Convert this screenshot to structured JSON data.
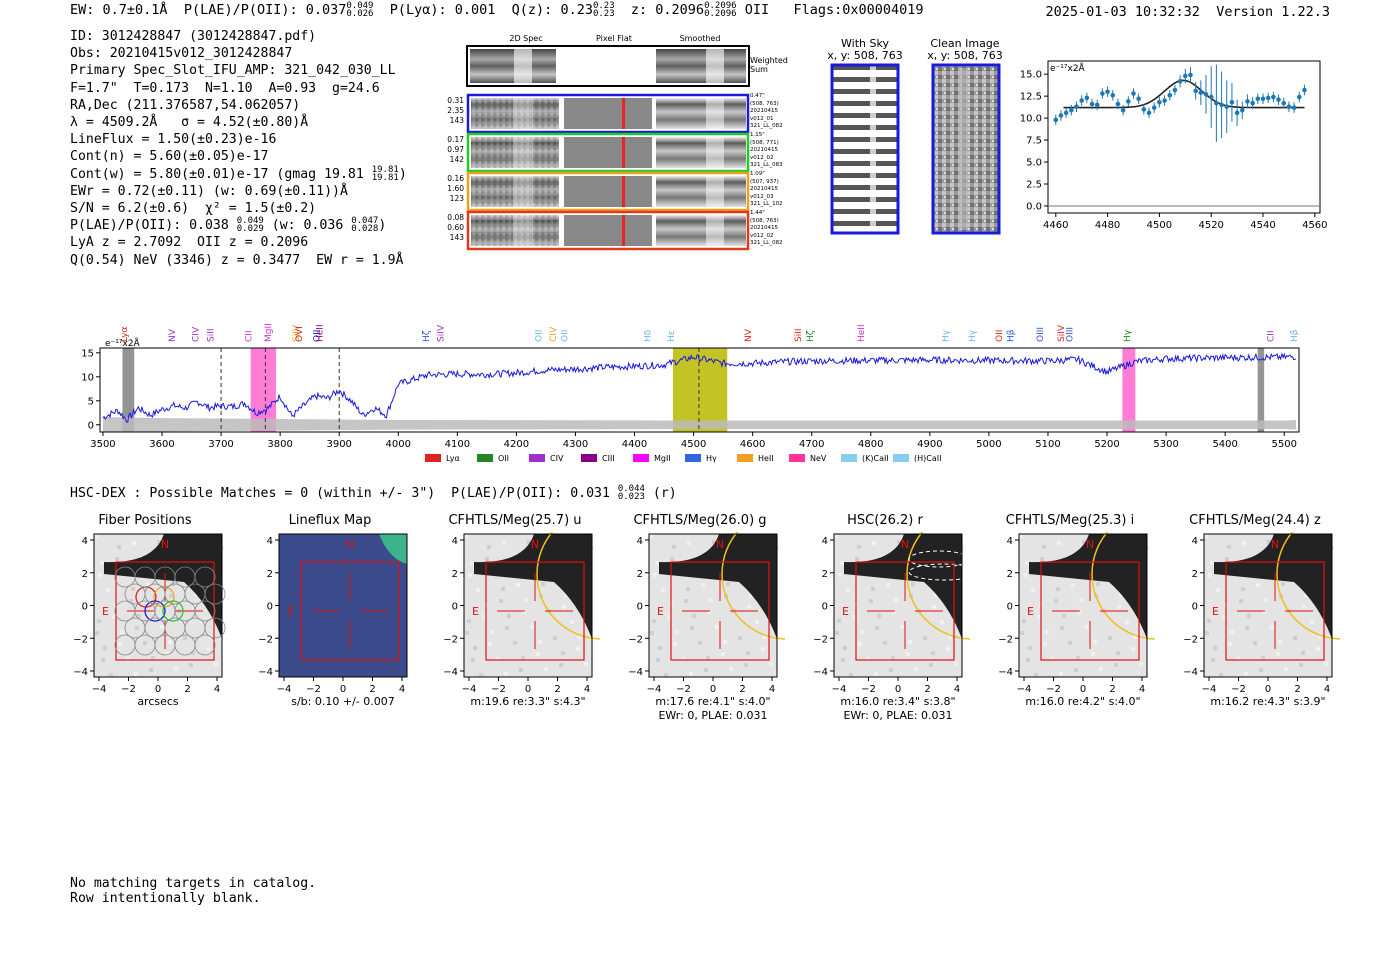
{
  "header": {
    "ew": "EW: 0.7±0.1Å",
    "plae_label": "P(LAE)/P(OII): 0.037",
    "plae_hi": "0.049",
    "plae_lo": "0.026",
    "plya": "P(Lyα): 0.001",
    "qz_label": "Q(z): 0.23",
    "qz_hi": "0.23",
    "qz_lo": "0.23",
    "z_label": "z: 0.2096",
    "z_hi": "0.2096",
    "z_lo": "0.2096",
    "z_line": "OII",
    "flags": "Flags:0x00004019",
    "timestamp": "2025-01-03 10:32:32",
    "version": "Version 1.22.3"
  },
  "info": {
    "id": "ID: 3012428847 (3012428847.pdf)",
    "obs": "Obs: 20210415v012_3012428847",
    "primary": "Primary Spec_Slot_IFU_AMP: 321_042_030_LL",
    "fwhm": "F=1.7\"  T=0.173  N=1.10  A=0.93  g=24.6",
    "radec": "RA,Dec (211.376587,54.062057)",
    "lambda": "λ = 4509.2Å   σ = 4.52(±0.80)Å",
    "lineflux": "LineFlux = 1.50(±0.23)e-16",
    "contn": "Cont(n) = 5.60(±0.05)e-17",
    "contw": "Cont(w) = 5.80(±0.01)e-17 (gmag 19.81",
    "gmag_hi": "19.81",
    "gmag_lo": "19.81",
    "contw_end": ")",
    "ewr": "EWr = 0.72(±0.11) (w: 0.69(±0.11))Å",
    "sn": "S/N = 6.2(±0.6)  χ² = 1.5(±0.2)",
    "plae2": "P(LAE)/P(OII): 0.038",
    "plae2_hi": "0.049",
    "plae2_lo": "0.029",
    "plae2_w": "(w: 0.036",
    "plae2_whi": "0.047",
    "plae2_wlo": "0.028",
    "plae2_end": ")",
    "lyaz": "LyA z = 2.7092  OII z = 0.2096",
    "q": "Q(0.54) NeV (3346) z = 0.3477  EW r = 1.9Å"
  },
  "spec2d": {
    "col_labels": [
      "2D Spec",
      "Pixel Flat",
      "Smoothed"
    ],
    "weighted": "Weighted Sum",
    "rows": [
      {
        "stats": [
          "0.31",
          "2.35",
          "143"
        ],
        "meta": [
          "0.47\"",
          "(508, 763)",
          "20210415",
          "v012_01",
          "321_LL_082"
        ],
        "color": "#1a1adc"
      },
      {
        "stats": [
          "0.17",
          "0.97",
          "142"
        ],
        "meta": [
          "1.15\"",
          "(508, 771)",
          "20210415",
          "v012_02",
          "321_LL_083"
        ],
        "color": "#22cc22"
      },
      {
        "stats": [
          "0.16",
          "1.60",
          "123"
        ],
        "meta": [
          "1.09\"",
          "(507, 937)",
          "20210415",
          "v012_03",
          "321_LL_102"
        ],
        "color": "#f0a020"
      },
      {
        "stats": [
          "0.08",
          "0.60",
          "143"
        ],
        "meta": [
          "1.44\"",
          "(508, 763)",
          "20210415",
          "v012_02",
          "321_LL_082"
        ],
        "color": "#e03a1a"
      }
    ]
  },
  "cutouts": {
    "sky_title": "With Sky",
    "sky_coord": "x, y: 508, 763",
    "clean_title": "Clean Image",
    "clean_coord": "x, y: 508, 763"
  },
  "zoom_chart": {
    "unit": "e⁻¹⁷x2Å"
  },
  "spectrum_chart": {
    "unit": "e⁻¹⁷x2Å",
    "legend_labels": [
      "Lyα",
      "OII",
      "CIV",
      "CIII",
      "MgII",
      "Hγ",
      "HeII",
      "NeV",
      "(K)CaII",
      "(H)CaII"
    ]
  },
  "chart_data": [
    {
      "type": "scatter",
      "title": "",
      "xlabel": "",
      "ylabel": "e⁻¹⁷x2Å",
      "xlim": [
        4457,
        4562
      ],
      "ylim": [
        -0.8,
        16.5
      ],
      "xticks": [
        4460,
        4480,
        4500,
        4520,
        4540,
        4560
      ],
      "yticks": [
        0.0,
        2.5,
        5.0,
        7.5,
        10.0,
        12.5,
        15.0
      ],
      "series": [
        {
          "name": "data",
          "x": [
            4460,
            4462,
            4464,
            4466,
            4468,
            4470,
            4472,
            4474,
            4476,
            4478,
            4480,
            4482,
            4484,
            4486,
            4488,
            4490,
            4492,
            4494,
            4496,
            4498,
            4500,
            4502,
            4504,
            4506,
            4508,
            4510,
            4512,
            4514,
            4516,
            4518,
            4520,
            4522,
            4524,
            4526,
            4528,
            4530,
            4532,
            4534,
            4536,
            4538,
            4540,
            4542,
            4544,
            4546,
            4548,
            4550,
            4552,
            4554,
            4556
          ],
          "y": [
            9.8,
            10.3,
            10.6,
            10.9,
            11.3,
            12.0,
            12.3,
            11.6,
            11.5,
            12.8,
            13.0,
            12.6,
            11.6,
            10.9,
            11.9,
            12.8,
            12.2,
            11.0,
            10.6,
            11.2,
            11.8,
            12.0,
            12.6,
            13.2,
            14.2,
            14.8,
            14.9,
            13.1,
            12.9,
            12.7,
            12.4,
            11.7,
            11.5,
            11.3,
            11.8,
            10.6,
            10.9,
            11.9,
            11.7,
            12.2,
            12.2,
            12.3,
            12.4,
            12.1,
            11.7,
            11.3,
            11.2,
            12.4,
            13.2
          ],
          "err": [
            0.6,
            0.6,
            0.6,
            0.6,
            0.6,
            0.6,
            0.6,
            0.6,
            0.6,
            0.6,
            0.6,
            0.6,
            0.6,
            0.6,
            0.6,
            0.6,
            0.6,
            0.6,
            0.6,
            0.6,
            0.6,
            0.6,
            0.6,
            0.6,
            0.7,
            0.8,
            0.9,
            1.0,
            1.4,
            2.2,
            3.5,
            4.4,
            3.8,
            3.0,
            2.2,
            1.5,
            1.0,
            0.8,
            0.7,
            0.6,
            0.6,
            0.6,
            0.6,
            0.6,
            0.6,
            0.6,
            0.6,
            0.6,
            0.6
          ]
        },
        {
          "name": "fit",
          "continuum": 11.2,
          "peak_x": 4509.2,
          "amplitude": 3.1,
          "sigma": 4.5
        }
      ]
    },
    {
      "type": "line",
      "title": "",
      "xlabel": "",
      "ylabel": "e⁻¹⁷x2Å",
      "xlim": [
        3495,
        5525
      ],
      "ylim": [
        -1.5,
        16
      ],
      "xticks": [
        3500,
        3600,
        3700,
        3800,
        3900,
        4000,
        4100,
        4200,
        4300,
        4400,
        4500,
        4600,
        4700,
        4800,
        4900,
        5000,
        5100,
        5200,
        5300,
        5400,
        5500
      ],
      "yticks": [
        0,
        5,
        10,
        15
      ],
      "series": [
        {
          "name": "flux",
          "x": [
            3500,
            3525,
            3540,
            3560,
            3580,
            3600,
            3620,
            3640,
            3660,
            3680,
            3700,
            3720,
            3740,
            3760,
            3780,
            3800,
            3820,
            3840,
            3860,
            3880,
            3900,
            3920,
            3940,
            3960,
            3980,
            4000,
            4050,
            4100,
            4150,
            4200,
            4250,
            4300,
            4350,
            4400,
            4450,
            4500,
            4550,
            4600,
            4650,
            4700,
            4800,
            4900,
            5000,
            5100,
            5150,
            5200,
            5250,
            5300,
            5400,
            5500,
            5520
          ],
          "y": [
            1.5,
            3.0,
            1.0,
            3.5,
            2.0,
            3.2,
            4.0,
            3.5,
            4.8,
            3.6,
            3.9,
            3.8,
            4.5,
            2.5,
            3.5,
            6.0,
            1.8,
            4.0,
            6.0,
            5.5,
            7.2,
            5.0,
            2.0,
            3.5,
            2.0,
            8.5,
            10.4,
            10.6,
            10.5,
            10.8,
            11.4,
            11.6,
            12.0,
            12.2,
            12.5,
            14.1,
            12.8,
            12.8,
            13.1,
            13.3,
            13.4,
            13.5,
            13.4,
            13.3,
            13.6,
            11.0,
            13.2,
            13.8,
            14.0,
            14.1,
            14.2
          ]
        },
        {
          "name": "error",
          "x": [
            3500,
            3600,
            3800,
            4000,
            4500,
            5000,
            5500,
            5520
          ],
          "y": [
            1.6,
            1.4,
            1.2,
            1.0,
            0.9,
            0.9,
            0.9,
            1.0
          ]
        }
      ],
      "spans": [
        {
          "name": "telluric-1",
          "x": [
            3533,
            3553
          ],
          "color": "#888888"
        },
        {
          "name": "MgII",
          "x": [
            3750,
            3793
          ],
          "color": "#ff66cc"
        },
        {
          "name": "OII-peak",
          "x": [
            4465,
            4557
          ],
          "color": "#b8b800"
        },
        {
          "name": "Hgamma",
          "x": [
            5226,
            5248
          ],
          "color": "#ff66cc"
        },
        {
          "name": "telluric-2",
          "x": [
            5455,
            5466
          ],
          "color": "#888888"
        }
      ],
      "vlines": [
        3775,
        3700,
        3900,
        4509
      ],
      "line_markers": [
        {
          "label": "Lyα",
          "x": 3534,
          "color": "#dd2222"
        },
        {
          "label": "NV",
          "x": 3615,
          "color": "#9933cc"
        },
        {
          "label": "CIV",
          "x": 3655,
          "color": "#9933cc"
        },
        {
          "label": "SiII",
          "x": 3680,
          "color": "#9933cc"
        },
        {
          "label": "CII",
          "x": 3745,
          "color": "#cc33cc"
        },
        {
          "label": "MgII",
          "x": 3778,
          "color": "#cc33cc"
        },
        {
          "label": "SiIV",
          "x": 3825,
          "color": "#f0a020"
        },
        {
          "label": "OVI",
          "x": 3830,
          "color": "#dd2222"
        },
        {
          "label": "OII",
          "x": 3860,
          "color": "#1a1adc"
        },
        {
          "label": "HeII",
          "x": 3865,
          "color": "#880088"
        },
        {
          "label": "Hζ",
          "x": 4045,
          "color": "#3355cc"
        },
        {
          "label": "SiIV",
          "x": 4070,
          "color": "#9933cc"
        },
        {
          "label": "OII",
          "x": 4236,
          "color": "#66bbdd"
        },
        {
          "label": "CIV",
          "x": 4260,
          "color": "#f0a020"
        },
        {
          "label": "OII",
          "x": 4280,
          "color": "#66bbdd"
        },
        {
          "label": "Hδ",
          "x": 4420,
          "color": "#66bbdd"
        },
        {
          "label": "Hε",
          "x": 4460,
          "color": "#66bbdd"
        },
        {
          "label": "NV",
          "x": 4590,
          "color": "#dd2222"
        },
        {
          "label": "SiII",
          "x": 4675,
          "color": "#dd2222"
        },
        {
          "label": "Hζ",
          "x": 4695,
          "color": "#228822"
        },
        {
          "label": "HeII",
          "x": 4782,
          "color": "#cc33cc"
        },
        {
          "label": "Hγ",
          "x": 4925,
          "color": "#66bbdd"
        },
        {
          "label": "Hγ",
          "x": 4970,
          "color": "#66bbdd"
        },
        {
          "label": "OII",
          "x": 5015,
          "color": "#dd2222"
        },
        {
          "label": "Hβ",
          "x": 5035,
          "color": "#3355cc"
        },
        {
          "label": "OIII",
          "x": 5085,
          "color": "#3355cc"
        },
        {
          "label": "SiIV",
          "x": 5120,
          "color": "#dd2222"
        },
        {
          "label": "OIII",
          "x": 5135,
          "color": "#3355cc"
        },
        {
          "label": "Hγ",
          "x": 5232,
          "color": "#228822"
        },
        {
          "label": "CII",
          "x": 5475,
          "color": "#9933cc"
        },
        {
          "label": "Hβ",
          "x": 5515,
          "color": "#66bbdd"
        }
      ],
      "legend": [
        "Lyα",
        "OII",
        "CIV",
        "CIII",
        "MgII",
        "Hγ",
        "HeII",
        "NeV",
        "(K)CaII",
        "(H)CaII"
      ],
      "legend_colors": [
        "#dd2222",
        "#228822",
        "#9933cc",
        "#880088",
        "#ff00ff",
        "#3366dd",
        "#f0a020",
        "#ff3399",
        "#88ccee",
        "#88ccee"
      ]
    }
  ],
  "hsc": {
    "label": "HSC-DEX : Possible Matches = 0 (within +/- 3\")  P(LAE)/P(OII): 0.031",
    "hi": "0.044",
    "lo": "0.023",
    "band": "(r)"
  },
  "thumbs": [
    {
      "title": "Fiber Positions",
      "cap1": "arcsecs",
      "cap2": ""
    },
    {
      "title": "Lineflux Map",
      "cap1": "s/b: 0.10 +/- 0.007",
      "cap2": ""
    },
    {
      "title": "CFHTLS/Meg(25.7) u",
      "cap1": "m:19.6  re:3.3\"  s:4.3\"",
      "cap2": ""
    },
    {
      "title": "CFHTLS/Meg(26.0) g",
      "cap1": "m:17.6  re:4.1\"  s:4.0\"",
      "cap2": "EWr: 0, PLAE: 0.031"
    },
    {
      "title": "HSC(26.2) r",
      "cap1": "m:16.0  re:3.4\"  s:3.8\"",
      "cap2": "EWr: 0, PLAE: 0.031"
    },
    {
      "title": "CFHTLS/Meg(25.3) i",
      "cap1": "m:16.0  re:4.2\"  s:4.0\"",
      "cap2": ""
    },
    {
      "title": "CFHTLS/Meg(24.4) z",
      "cap1": "m:16.2  re:4.3\"  s:3.9\"",
      "cap2": ""
    }
  ],
  "thumb_axes": {
    "xticks": [
      "−4",
      "−2",
      "0",
      "2",
      "4"
    ],
    "yticks": [
      "4",
      "2",
      "0",
      "−2",
      "−4"
    ],
    "north": "N",
    "east": "E"
  },
  "footer": {
    "line1": "No matching targets in catalog.",
    "line2": "Row intentionally blank."
  }
}
